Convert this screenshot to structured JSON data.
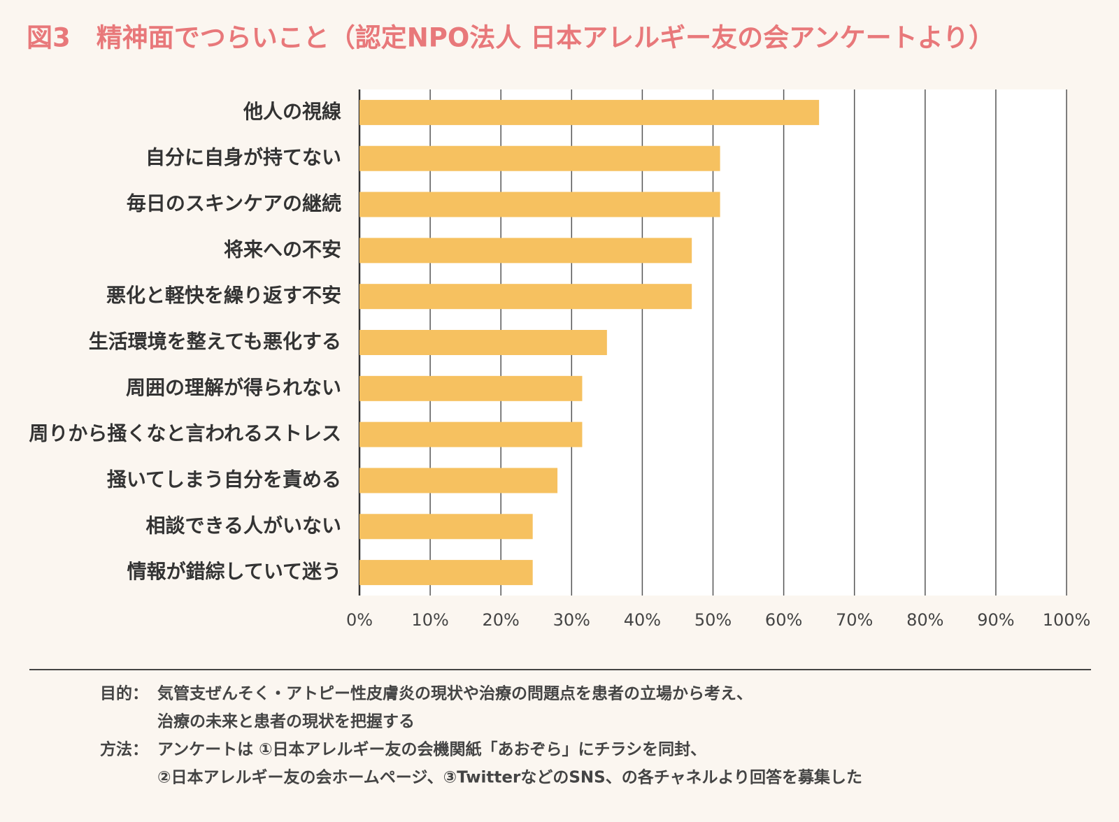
{
  "chart_data": {
    "type": "hbar",
    "title": "図3　精神面でつらいこと（認定NPO法人 日本アレルギー友の会アンケートより）",
    "categories": [
      "他人の視線",
      "自分に自身が持てない",
      "毎日のスキンケアの継続",
      "将来への不安",
      "悪化と軽快を繰り返す不安",
      "生活環境を整えても悪化する",
      "周囲の理解が得られない",
      "周りから掻くなと言われるストレス",
      "掻いてしまう自分を責める",
      "相談できる人がいない",
      "情報が錯綜していて迷う"
    ],
    "values": [
      65,
      51,
      51,
      47,
      47,
      35,
      31.5,
      31.5,
      28,
      24.5,
      24.5
    ],
    "color": "#f6c160",
    "xlim": [
      0,
      100
    ],
    "xticks": [
      {
        "value": 0,
        "label": "0%"
      },
      {
        "value": 10,
        "label": "10%"
      },
      {
        "value": 20,
        "label": "20%"
      },
      {
        "value": 30,
        "label": "30%"
      },
      {
        "value": 40,
        "label": "40%"
      },
      {
        "value": 50,
        "label": "50%"
      },
      {
        "value": 60,
        "label": "60%"
      },
      {
        "value": 70,
        "label": "70%"
      },
      {
        "value": 80,
        "label": "80%"
      },
      {
        "value": 90,
        "label": "90%"
      },
      {
        "value": 100,
        "label": "100%"
      }
    ],
    "grid": true
  },
  "footer": {
    "rows": [
      {
        "label": "目的：",
        "lines": [
          "気管支ぜんそく・アトピー性皮膚炎の現状や治療の問題点を患者の立場から考え、",
          "治療の未来と患者の現状を把握する"
        ]
      },
      {
        "label": "方法：",
        "lines": [
          "アンケートは ①日本アレルギー友の会機関紙「あおぞら」にチラシを同封、",
          "②日本アレルギー友の会ホームページ、③TwitterなどのSNS、の各チャネルより回答を募集した"
        ]
      }
    ]
  }
}
